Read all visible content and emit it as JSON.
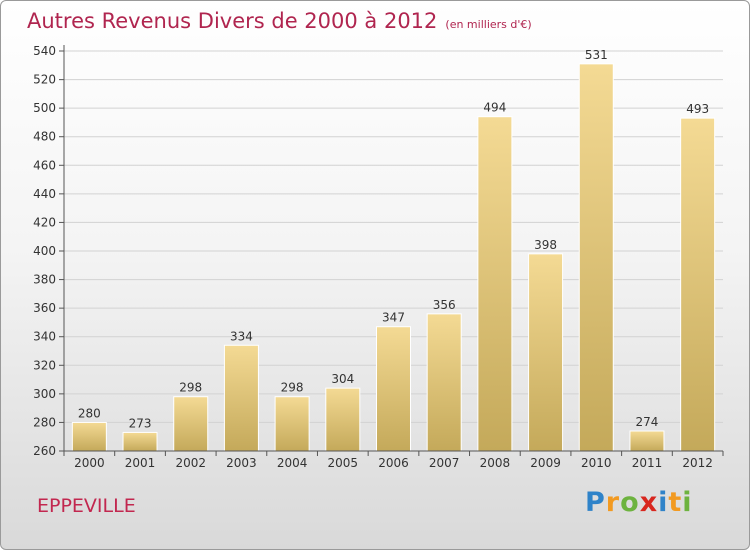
{
  "chart_data": {
    "type": "bar",
    "title": "Autres Revenus Divers de 2000 à 2012",
    "subtitle": "(en milliers d'€)",
    "categories": [
      "2000",
      "2001",
      "2002",
      "2003",
      "2004",
      "2005",
      "2006",
      "2007",
      "2008",
      "2009",
      "2010",
      "2011",
      "2012"
    ],
    "values": [
      280,
      273,
      298,
      334,
      298,
      304,
      347,
      356,
      494,
      398,
      531,
      274,
      493
    ],
    "ylim": [
      260,
      540
    ],
    "yticks": [
      260,
      280,
      300,
      320,
      340,
      360,
      380,
      400,
      420,
      440,
      460,
      480,
      500,
      520,
      540
    ],
    "grid": true,
    "bar_color": "#e3c47a"
  },
  "footer": {
    "commune": "EPPEVILLE",
    "logo": "Proxiti"
  }
}
